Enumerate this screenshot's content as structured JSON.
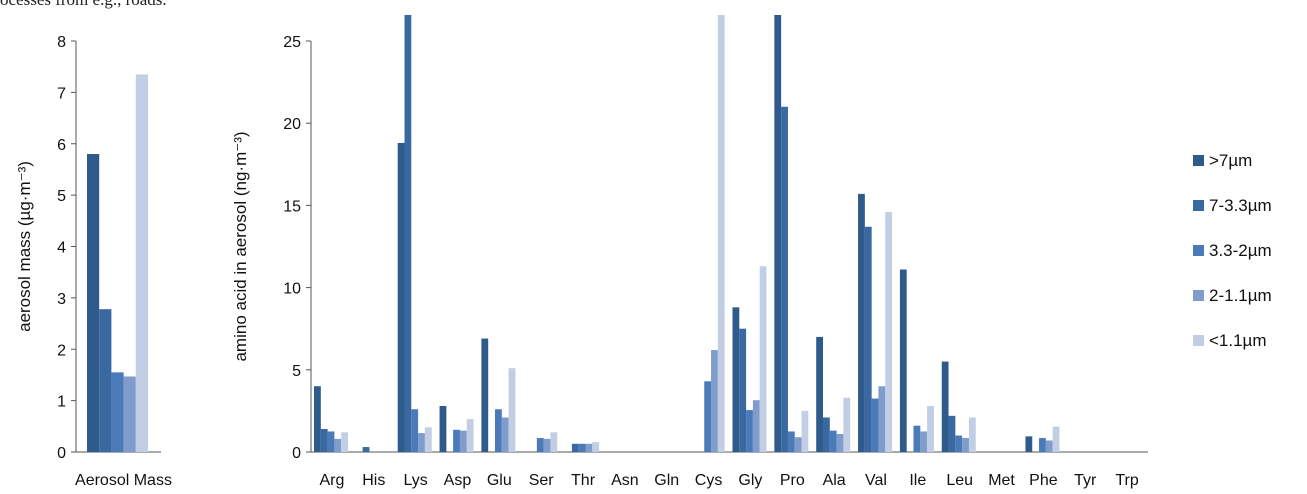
{
  "header_text": "ocesses from e.g., roads.",
  "colors": [
    "#2e5a8c",
    "#3a68a1",
    "#4a7ab8",
    "#7f9ccc",
    "#c2cee4"
  ],
  "legend": [
    ">7µm",
    "7-3.3µm",
    "3.3-2µm",
    "2-1.1µm",
    "<1.1µm"
  ],
  "chart_data": [
    {
      "type": "bar",
      "categories": [
        "Aerosol Mass"
      ],
      "series": [
        {
          "name": ">7µm",
          "values": [
            5.8
          ]
        },
        {
          "name": "7-3.3µm",
          "values": [
            2.78
          ]
        },
        {
          "name": "3.3-2µm",
          "values": [
            1.55
          ]
        },
        {
          "name": "2-1.1µm",
          "values": [
            1.47
          ]
        },
        {
          "name": "<1.1µm",
          "values": [
            7.35
          ]
        }
      ],
      "ylabel": "aerosol mass (µg·m⁻³)",
      "ylim": [
        0,
        8
      ],
      "yticks": [
        0,
        1,
        2,
        3,
        4,
        5,
        6,
        7,
        8
      ],
      "grid": false
    },
    {
      "type": "bar",
      "categories": [
        "Arg",
        "His",
        "Lys",
        "Asp",
        "Glu",
        "Ser",
        "Thr",
        "Asn",
        "Gln",
        "Cys",
        "Gly",
        "Pro",
        "Ala",
        "Val",
        "Ile",
        "Leu",
        "Met",
        "Phe",
        "Tyr",
        "Trp"
      ],
      "series": [
        {
          "name": ">7µm",
          "values": [
            4.0,
            0,
            18.8,
            2.8,
            6.9,
            0,
            0,
            0,
            0,
            0,
            8.8,
            27.0,
            7.0,
            15.7,
            11.1,
            5.5,
            0,
            0.95,
            0,
            0
          ]
        },
        {
          "name": "7-3.3µm",
          "values": [
            1.4,
            0.3,
            27.0,
            0,
            0,
            0,
            0.5,
            0,
            0,
            0,
            7.5,
            21.0,
            2.1,
            13.7,
            0,
            2.2,
            0,
            0,
            0,
            0
          ]
        },
        {
          "name": "3.3-2µm",
          "values": [
            1.25,
            0,
            2.6,
            1.35,
            2.6,
            0.85,
            0.5,
            0,
            0,
            4.3,
            2.55,
            1.25,
            1.3,
            3.25,
            1.6,
            1.0,
            0,
            0.85,
            0,
            0
          ]
        },
        {
          "name": "2-1.1µm",
          "values": [
            0.8,
            0,
            1.15,
            1.3,
            2.1,
            0.8,
            0.5,
            0,
            0,
            6.2,
            3.15,
            0.9,
            1.1,
            4.0,
            1.25,
            0.85,
            0,
            0.7,
            0,
            0
          ]
        },
        {
          "name": "<1.1µm",
          "values": [
            1.2,
            0,
            1.5,
            2.0,
            5.1,
            1.2,
            0.6,
            0,
            0,
            27.0,
            11.3,
            2.5,
            3.3,
            14.6,
            2.8,
            2.1,
            0,
            1.55,
            0,
            0
          ]
        }
      ],
      "ylabel": "amino acid in aerosol (ng·m⁻³)",
      "ylim": [
        0,
        25
      ],
      "yticks": [
        0,
        5,
        10,
        15,
        20,
        25
      ],
      "grid": false,
      "legend_position": "right"
    }
  ]
}
